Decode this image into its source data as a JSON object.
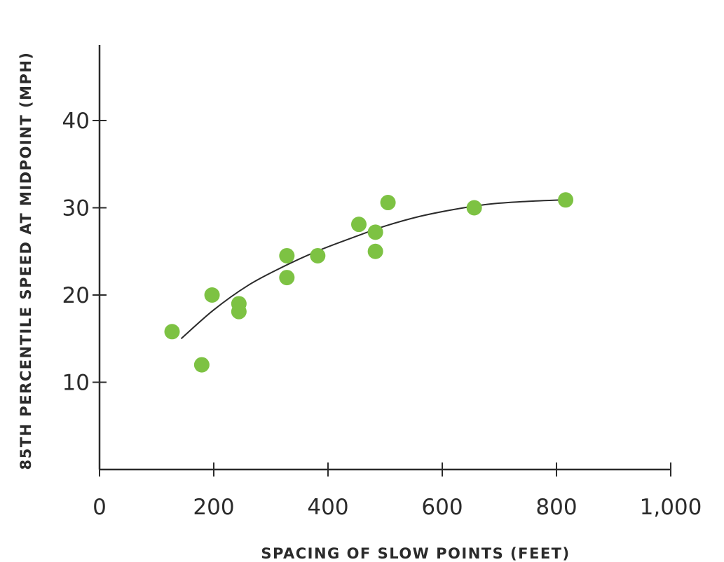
{
  "chart_data": {
    "type": "scatter",
    "xlabel": "SPACING OF SLOW POINTS (FEET)",
    "ylabel": "85TH PERCENTILE SPEED AT MIDPOINT (MPH)",
    "xlim": [
      0,
      1000
    ],
    "ylim": [
      0,
      48
    ],
    "x_ticks": [
      0,
      200,
      400,
      600,
      800,
      1000
    ],
    "x_tick_labels": [
      "0",
      "200",
      "400",
      "600",
      "800",
      "1,000"
    ],
    "y_ticks": [
      10,
      20,
      30,
      40
    ],
    "y_tick_labels": [
      "10",
      "20",
      "30",
      "40"
    ],
    "grid": false,
    "marker_color": "#7dc243",
    "trend_color": "#2b2b2b",
    "axis_color": "#2b2b2b",
    "series": [
      {
        "points": [
          {
            "x": 127,
            "y": 15.8
          },
          {
            "x": 179,
            "y": 12.0
          },
          {
            "x": 197,
            "y": 20.0
          },
          {
            "x": 244,
            "y": 19.0
          },
          {
            "x": 244,
            "y": 18.1
          },
          {
            "x": 328,
            "y": 24.5
          },
          {
            "x": 328,
            "y": 22.0
          },
          {
            "x": 382,
            "y": 24.5
          },
          {
            "x": 454,
            "y": 28.1
          },
          {
            "x": 483,
            "y": 27.2
          },
          {
            "x": 483,
            "y": 25.0
          },
          {
            "x": 505,
            "y": 30.6
          },
          {
            "x": 656,
            "y": 30.0
          },
          {
            "x": 816,
            "y": 30.9
          }
        ]
      }
    ],
    "trend_line": [
      {
        "x": 143,
        "y": 15.0
      },
      {
        "x": 200,
        "y": 18.3
      },
      {
        "x": 260,
        "y": 21.1
      },
      {
        "x": 320,
        "y": 23.2
      },
      {
        "x": 380,
        "y": 25.0
      },
      {
        "x": 440,
        "y": 26.5
      },
      {
        "x": 500,
        "y": 27.9
      },
      {
        "x": 560,
        "y": 29.0
      },
      {
        "x": 620,
        "y": 29.8
      },
      {
        "x": 680,
        "y": 30.4
      },
      {
        "x": 740,
        "y": 30.7
      },
      {
        "x": 810,
        "y": 30.9
      }
    ]
  }
}
